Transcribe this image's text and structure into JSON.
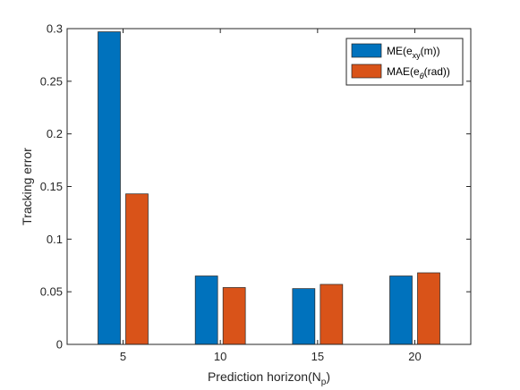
{
  "chart_data": {
    "type": "bar",
    "categories": [
      "5",
      "10",
      "15",
      "20"
    ],
    "series": [
      {
        "name": "ME(e_xy(m))",
        "color": "#0072BD",
        "values": [
          0.297,
          0.065,
          0.053,
          0.065
        ]
      },
      {
        "name": "MAE(e_θ(rad))",
        "color": "#D95319",
        "values": [
          0.143,
          0.054,
          0.057,
          0.068
        ]
      }
    ],
    "xlabel": "Prediction horizon(N_p)",
    "ylabel": "Tracking error",
    "ylim": [
      0,
      0.3
    ],
    "yticks": [
      0,
      0.05,
      0.1,
      0.15,
      0.2,
      0.25,
      0.3
    ],
    "yticklabels": [
      "0",
      "0.05",
      "0.1",
      "0.15",
      "0.2",
      "0.25",
      "0.3"
    ],
    "grid": false,
    "legend_position": "top-right"
  },
  "legend": {
    "me_main": "ME(e",
    "me_sub": "xy",
    "me_tail": "(m))",
    "mae_main": "MAE(e",
    "mae_sub": "θ",
    "mae_tail": "(rad))"
  },
  "labels": {
    "ylabel": "Tracking error",
    "xlabel_main": "Prediction horizon(N",
    "xlabel_sub": "p",
    "xlabel_tail": ")"
  }
}
